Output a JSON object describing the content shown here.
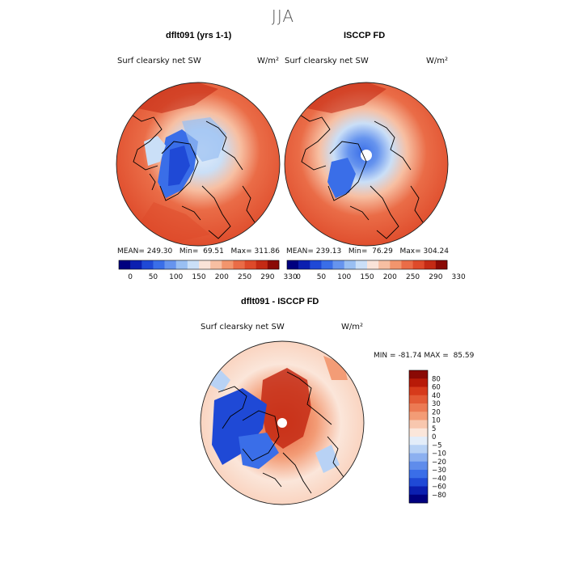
{
  "season": "JJA",
  "colors": {
    "abs_scale": [
      "#00007f",
      "#0b1fb0",
      "#1f49d6",
      "#3a6ee8",
      "#6694ee",
      "#99bff2",
      "#cadff7",
      "#f9e3d8",
      "#f7bfa2",
      "#f2956d",
      "#ea6c47",
      "#de4a2a",
      "#c42a14",
      "#8a0a05"
    ],
    "diff_scale": [
      "#00007f",
      "#0b1fb0",
      "#1f49d6",
      "#3a6ee8",
      "#5f8ceb",
      "#8cb0f0",
      "#b8d2f5",
      "#e3edf9",
      "#fbe6da",
      "#f8c7ae",
      "#f39c76",
      "#ec7a53",
      "#e35a35",
      "#d63a1b",
      "#b81a08",
      "#8a0a05"
    ],
    "coast": "#000000"
  },
  "panels": {
    "left": {
      "title": "dflt091 (yrs 1-1)",
      "variable": "Surf clearsky net SW",
      "units": "W/m²",
      "mean_label": "MEAN=",
      "mean": "249.30",
      "min_label": "Min=",
      "min": "69.51",
      "max_label": "Max=",
      "max": "311.86"
    },
    "right": {
      "title": "ISCCP FD",
      "variable": "Surf clearsky net SW",
      "units": "W/m²",
      "mean_label": "MEAN=",
      "mean": "239.13",
      "min_label": "Min=",
      "min": "76.29",
      "max_label": "Max=",
      "max": "304.24"
    },
    "diff": {
      "title": "dflt091 - ISCCP FD",
      "variable": "Surf clearsky net SW",
      "units": "W/m²",
      "min_label": "MIN =",
      "min": "-81.74",
      "max_label": "MAX =",
      "max": "85.59"
    }
  },
  "chart_data": [
    {
      "type": "heatmap",
      "title": "dflt091 (yrs 1-1)",
      "projection": "north polar stereographic",
      "colorbar_ticks": [
        "0",
        "50",
        "100",
        "150",
        "200",
        "250",
        "290",
        "330"
      ],
      "colorbar_levels": 14,
      "mean": 249.3,
      "min": 69.51,
      "max": 311.86
    },
    {
      "type": "heatmap",
      "title": "ISCCP FD",
      "projection": "north polar stereographic",
      "colorbar_ticks": [
        "0",
        "50",
        "100",
        "150",
        "200",
        "250",
        "290",
        "330"
      ],
      "colorbar_levels": 14,
      "mean": 239.13,
      "min": 76.29,
      "max": 304.24
    },
    {
      "type": "heatmap",
      "title": "dflt091 - ISCCP FD",
      "projection": "north polar stereographic",
      "colorbar_ticks": [
        "80",
        "60",
        "40",
        "30",
        "20",
        "10",
        "5",
        "0",
        "−5",
        "−10",
        "−20",
        "−30",
        "−40",
        "−60",
        "−80"
      ],
      "min": -81.74,
      "max": 85.59
    }
  ]
}
